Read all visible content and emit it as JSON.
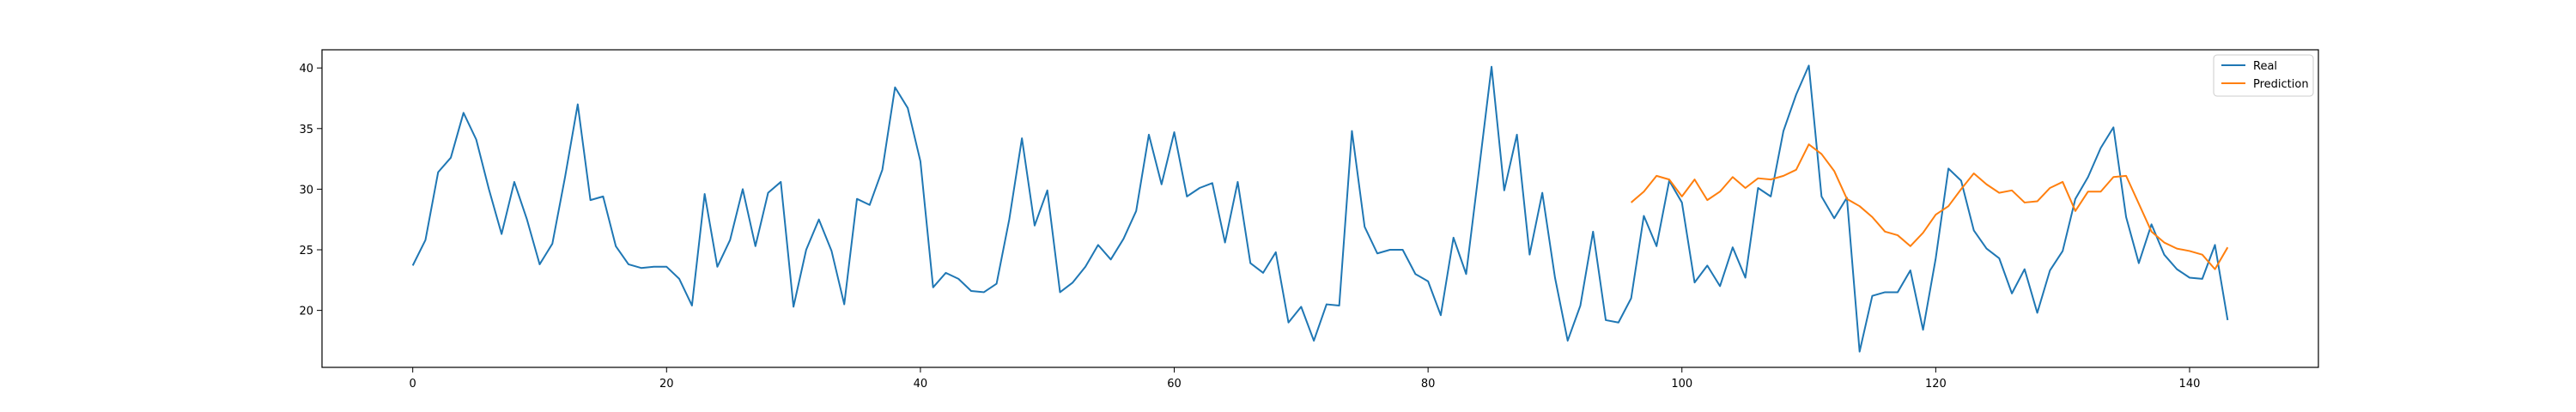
{
  "chart_data": {
    "type": "line",
    "title": "",
    "xlabel": "",
    "ylabel": "",
    "xlim": [
      -7.15,
      150.15
    ],
    "ylim": [
      15.3,
      41.5
    ],
    "xticks": [
      0,
      20,
      40,
      60,
      80,
      100,
      120,
      140
    ],
    "yticks": [
      20,
      25,
      30,
      35,
      40
    ],
    "legend": {
      "placement": "top-right",
      "entries": [
        "Real",
        "Prediction"
      ]
    },
    "grid": false,
    "series": [
      {
        "name": "Real",
        "color": "#1f77b4",
        "x_start": 0,
        "values": [
          23.7,
          25.8,
          31.4,
          32.6,
          36.3,
          34.1,
          30.0,
          26.3,
          30.6,
          27.5,
          23.8,
          25.5,
          31.0,
          37.0,
          29.1,
          29.4,
          25.3,
          23.8,
          23.5,
          23.6,
          23.6,
          22.6,
          20.4,
          29.6,
          23.6,
          25.8,
          30.0,
          25.3,
          29.7,
          30.6,
          20.3,
          25.0,
          27.5,
          24.9,
          20.5,
          29.2,
          28.7,
          31.6,
          38.4,
          36.7,
          32.3,
          21.9,
          23.1,
          22.6,
          21.6,
          21.5,
          22.2,
          27.5,
          34.2,
          27.0,
          29.9,
          21.5,
          22.3,
          23.6,
          25.4,
          24.2,
          25.9,
          28.2,
          34.5,
          30.4,
          34.7,
          29.4,
          30.1,
          30.5,
          25.6,
          30.6,
          23.9,
          23.1,
          24.8,
          19.0,
          20.3,
          17.5,
          20.5,
          20.4,
          34.8,
          26.9,
          24.7,
          25.0,
          25.0,
          23.0,
          22.4,
          19.6,
          26.0,
          23.0,
          31.5,
          40.1,
          29.9,
          34.5,
          24.6,
          29.7,
          22.7,
          17.5,
          20.4,
          26.5,
          19.2,
          19.0,
          21.0,
          27.8,
          25.3,
          30.7,
          28.9,
          22.3,
          23.7,
          22.0,
          25.2,
          22.7,
          30.1,
          29.4,
          34.8,
          37.8,
          40.2,
          29.4,
          27.6,
          29.3,
          16.6,
          21.2,
          21.5,
          21.5,
          23.3,
          18.4,
          24.3,
          31.7,
          30.7,
          26.6,
          25.1,
          24.3,
          21.4,
          23.4,
          19.8,
          23.3,
          24.9,
          29.2,
          31.0,
          33.4,
          35.1,
          27.7,
          23.9,
          27.1,
          24.6,
          23.4,
          22.7,
          22.6,
          25.4,
          19.2
        ]
      },
      {
        "name": "Prediction",
        "color": "#ff7f0e",
        "x_start": 96,
        "values": [
          28.9,
          29.8,
          31.1,
          30.8,
          29.4,
          30.8,
          29.1,
          29.8,
          31.0,
          30.1,
          30.9,
          30.8,
          31.1,
          31.6,
          33.7,
          32.9,
          31.5,
          29.2,
          28.6,
          27.7,
          26.5,
          26.2,
          25.3,
          26.4,
          27.9,
          28.6,
          30.0,
          31.3,
          30.4,
          29.7,
          29.9,
          28.9,
          29.0,
          30.1,
          30.6,
          28.2,
          29.8,
          29.8,
          31.0,
          31.1,
          28.8,
          26.5,
          25.6,
          25.1,
          24.9,
          24.6,
          23.4,
          25.2
        ]
      }
    ]
  }
}
